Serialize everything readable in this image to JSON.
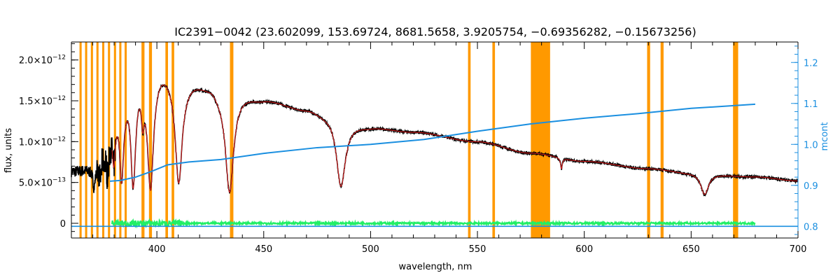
{
  "chart_data": {
    "type": "line",
    "title": "IC2391−0042    (23.602099, 153.69724, 8681.5658, 3.9205754, −0.69356282, −0.15673256)",
    "xlabel": "wavelength, nm",
    "ylabel": "flux, units",
    "y2label": "mcont",
    "xlim": [
      360,
      700
    ],
    "ylim": [
      -1.8e-13,
      2.22e-12
    ],
    "y2lim": [
      0.7714,
      1.25
    ],
    "x_ticks": [
      400,
      450,
      500,
      550,
      600,
      650,
      700
    ],
    "x_tick_labels": [
      "400",
      "450",
      "500",
      "550",
      "600",
      "650",
      "700"
    ],
    "y_ticks": [
      {
        "value": 0,
        "mant": "0",
        "exp": ""
      },
      {
        "value": 5e-13,
        "mant": "5.0×10",
        "exp": "−13"
      },
      {
        "value": 1e-12,
        "mant": "1.0×10",
        "exp": "−12"
      },
      {
        "value": 1.5e-12,
        "mant": "1.5×10",
        "exp": "−12"
      },
      {
        "value": 2e-12,
        "mant": "2.0×10",
        "exp": "−12"
      }
    ],
    "y2_ticks": [
      0.8,
      0.9,
      1.0,
      1.1,
      1.2
    ],
    "y2_tick_labels": [
      "0.8",
      "0.9",
      "1.0",
      "1.1",
      "1.2"
    ],
    "masked_regions_nm": [
      [
        363.8,
        364.8
      ],
      [
        366.4,
        367.4
      ],
      [
        369.1,
        370.1
      ],
      [
        371.7,
        372.7
      ],
      [
        374.4,
        375.4
      ],
      [
        377.1,
        378.1
      ],
      [
        379.9,
        380.9
      ],
      [
        382.4,
        383.4
      ],
      [
        384.9,
        385.9
      ],
      [
        392.8,
        394.2
      ],
      [
        396.3,
        397.7
      ],
      [
        404.0,
        405.2
      ],
      [
        406.9,
        408.1
      ],
      [
        434.2,
        435.8
      ],
      [
        545.6,
        546.8
      ],
      [
        557.0,
        558.2
      ],
      [
        575.0,
        584.0
      ],
      [
        629.4,
        630.8
      ],
      [
        635.7,
        637.1
      ],
      [
        669.6,
        672.0
      ]
    ],
    "grid": false,
    "legend": "none",
    "colors": {
      "observed": "#000000",
      "model": "#d42020",
      "mcont": "#1a8fe0",
      "residual": "#22ee66",
      "mask": "#ff9900",
      "right_axis": "#1a8fe0"
    },
    "continuum_anchors": [
      {
        "x": 360,
        "f": 6.5e-13
      },
      {
        "x": 370,
        "f": 6.8e-13
      },
      {
        "x": 375,
        "f": 9e-13
      },
      {
        "x": 380,
        "f": 1.45e-12
      },
      {
        "x": 384,
        "f": 1.6e-12
      },
      {
        "x": 388,
        "f": 1.8e-12
      },
      {
        "x": 393,
        "f": 1.9e-12
      },
      {
        "x": 398,
        "f": 1.88e-12
      },
      {
        "x": 402,
        "f": 1.92e-12
      },
      {
        "x": 408,
        "f": 1.86e-12
      },
      {
        "x": 415,
        "f": 1.76e-12
      },
      {
        "x": 425,
        "f": 1.7e-12
      },
      {
        "x": 430,
        "f": 1.62e-12
      },
      {
        "x": 438,
        "f": 1.59e-12
      },
      {
        "x": 450,
        "f": 1.52e-12
      },
      {
        "x": 470,
        "f": 1.4e-12
      },
      {
        "x": 480,
        "f": 1.33e-12
      },
      {
        "x": 490,
        "f": 1.22e-12
      },
      {
        "x": 500,
        "f": 1.18e-12
      },
      {
        "x": 520,
        "f": 1.12e-12
      },
      {
        "x": 550,
        "f": 1e-12
      },
      {
        "x": 575,
        "f": 8.6e-13
      },
      {
        "x": 600,
        "f": 7.6e-13
      },
      {
        "x": 630,
        "f": 6.7e-13
      },
      {
        "x": 650,
        "f": 6.2e-13
      },
      {
        "x": 680,
        "f": 5.7e-13
      },
      {
        "x": 700,
        "f": 5.2e-13
      }
    ],
    "absorption_lines": [
      {
        "x": 370.6,
        "depth": 2e-13,
        "width": 0.6
      },
      {
        "x": 373.4,
        "depth": 2.6e-13,
        "width": 0.7
      },
      {
        "x": 377.1,
        "depth": 3.8e-13,
        "width": 0.8
      },
      {
        "x": 379.8,
        "depth": 6e-13,
        "width": 0.9
      },
      {
        "x": 383.5,
        "depth": 9.5e-13,
        "width": 1.1
      },
      {
        "x": 388.9,
        "depth": 1.25e-12,
        "width": 1.4
      },
      {
        "x": 393.4,
        "depth": 4e-13,
        "width": 0.8
      },
      {
        "x": 397.0,
        "depth": 1.38e-12,
        "width": 1.7
      },
      {
        "x": 410.2,
        "depth": 1.3e-12,
        "width": 2.0
      },
      {
        "x": 434.0,
        "depth": 1.21e-12,
        "width": 2.3
      },
      {
        "x": 486.1,
        "depth": 8e-13,
        "width": 2.5
      },
      {
        "x": 589.3,
        "depth": 1.3e-13,
        "width": 0.5
      },
      {
        "x": 656.3,
        "depth": 2.6e-13,
        "width": 2.2
      }
    ],
    "mcont_points": [
      {
        "x": 378,
        "y": 0.91
      },
      {
        "x": 383,
        "y": 0.912
      },
      {
        "x": 390,
        "y": 0.92
      },
      {
        "x": 397,
        "y": 0.933
      },
      {
        "x": 405,
        "y": 0.95
      },
      {
        "x": 415,
        "y": 0.957
      },
      {
        "x": 430,
        "y": 0.963
      },
      {
        "x": 450,
        "y": 0.978
      },
      {
        "x": 475,
        "y": 0.992
      },
      {
        "x": 500,
        "y": 1.0
      },
      {
        "x": 525,
        "y": 1.012
      },
      {
        "x": 550,
        "y": 1.032
      },
      {
        "x": 575,
        "y": 1.05
      },
      {
        "x": 600,
        "y": 1.064
      },
      {
        "x": 625,
        "y": 1.075
      },
      {
        "x": 650,
        "y": 1.088
      },
      {
        "x": 680,
        "y": 1.098
      }
    ],
    "mcont_baseline": {
      "x_from": 360,
      "x_to": 700,
      "y": 0.8
    },
    "residual_range_nm": [
      379,
      680
    ],
    "residual_level": 0
  }
}
